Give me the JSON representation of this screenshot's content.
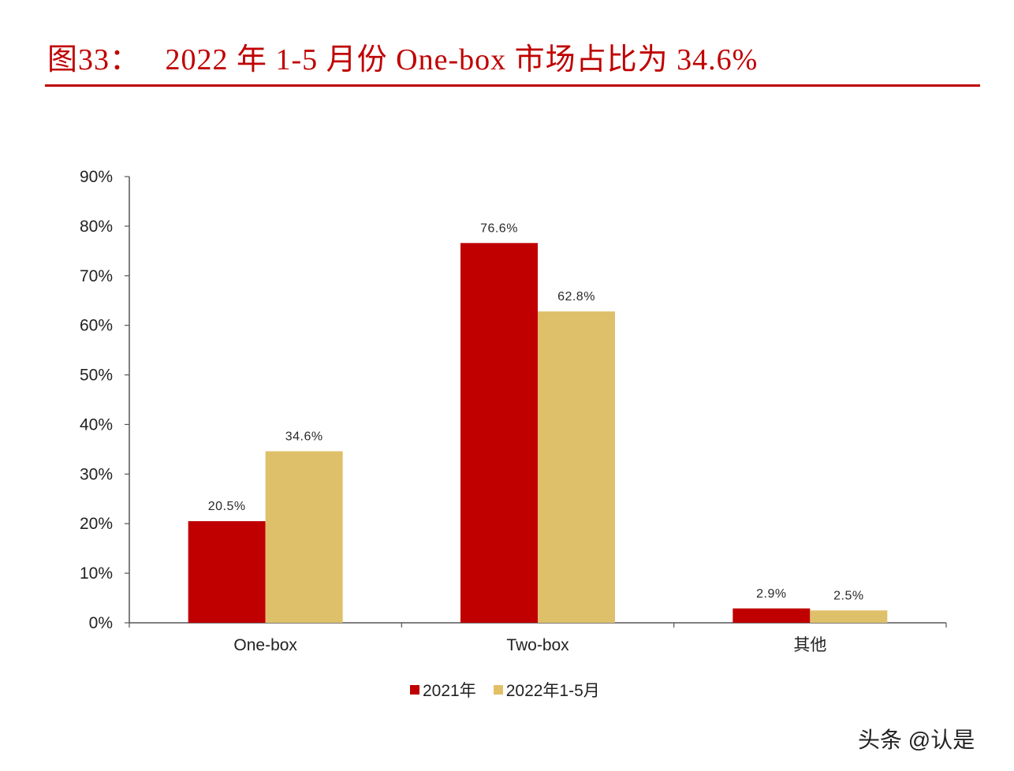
{
  "title": "图33：   2022 年 1-5 月份 One-box 市场占比为 34.6%",
  "chart_data": {
    "type": "bar",
    "title": "2022年1-5月份One-box市场占比为34.6%",
    "figure_label": "图33",
    "categories": [
      "One-box",
      "Two-box",
      "其他"
    ],
    "series": [
      {
        "name": "2021年",
        "color": "#c00000",
        "values": [
          20.5,
          76.6,
          2.9
        ],
        "labels": [
          "20.5%",
          "76.6%",
          "2.9%"
        ]
      },
      {
        "name": "2022年1-5月",
        "color": "#dfc06a",
        "values": [
          34.6,
          62.8,
          2.5
        ],
        "labels": [
          "34.6%",
          "62.8%",
          "2.5%"
        ]
      }
    ],
    "xlabel": "",
    "ylabel": "",
    "ylim": [
      0,
      90
    ],
    "yticks": [
      "0%",
      "10%",
      "20%",
      "30%",
      "40%",
      "50%",
      "60%",
      "70%",
      "80%",
      "90%"
    ],
    "grid": false,
    "legend_position": "bottom"
  },
  "legend": {
    "item_1": "2021年",
    "item_2": "2022年1-5月"
  },
  "watermark": "头条 @认是"
}
